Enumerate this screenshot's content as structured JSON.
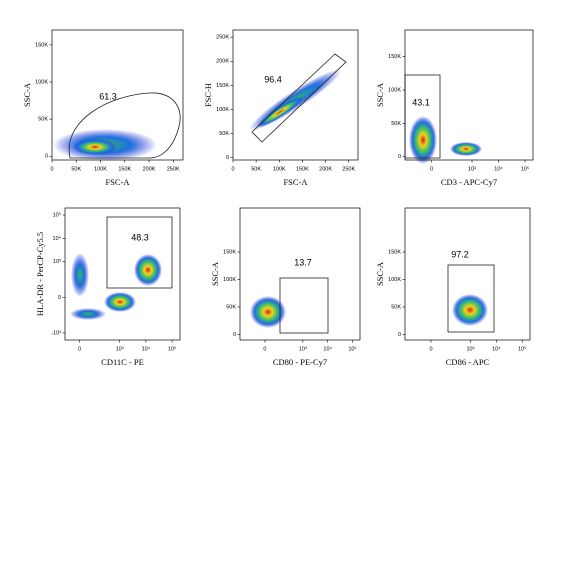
{
  "chart_data": [
    {
      "type": "scatter",
      "xlabel": "FSC-A",
      "ylabel": "SSC-A",
      "gate_percent": 61.3,
      "xscale": "linear",
      "yscale": "linear",
      "xlim": [
        0,
        270000
      ],
      "xticks": [
        0,
        {
          "value": 50000,
          "label": "50K"
        },
        {
          "value": 100000,
          "label": "100K"
        },
        {
          "value": 150000,
          "label": "150K"
        },
        {
          "value": 200000,
          "label": "200K"
        },
        {
          "value": 250000,
          "label": "250K"
        }
      ],
      "ylim": [
        -5000,
        170000
      ],
      "yticks": [
        0,
        {
          "value": 50000,
          "label": "50K"
        },
        {
          "value": 100000,
          "label": "100K"
        },
        {
          "value": 150000,
          "label": "150K"
        }
      ]
    },
    {
      "type": "scatter",
      "xlabel": "FSC-A",
      "ylabel": "FSC-H",
      "gate_percent": 96.4,
      "xscale": "linear",
      "yscale": "linear",
      "xlim": [
        0,
        270000
      ],
      "xticks": [
        0,
        {
          "value": 50000,
          "label": "50K"
        },
        {
          "value": 100000,
          "label": "100K"
        },
        {
          "value": 150000,
          "label": "150K"
        },
        {
          "value": 200000,
          "label": "200K"
        },
        {
          "value": 250000,
          "label": "250K"
        }
      ],
      "ylim": [
        -5000,
        265000
      ],
      "yticks": [
        0,
        {
          "value": 50000,
          "label": "50K"
        },
        {
          "value": 100000,
          "label": "100K"
        },
        {
          "value": 150000,
          "label": "150K"
        },
        {
          "value": 200000,
          "label": "200K"
        },
        {
          "value": 250000,
          "label": "250K"
        }
      ]
    },
    {
      "type": "scatter",
      "xlabel": "CD3 - APC-Cy7",
      "ylabel": "SSC-A",
      "gate_percent": 43.1,
      "xscale": "biex",
      "yscale": "linear",
      "xlim": [
        -300,
        200000
      ],
      "xticks": [
        0,
        {
          "value": 1000,
          "label": "10³"
        },
        {
          "value": 10000,
          "label": "10⁴"
        },
        {
          "value": 100000,
          "label": "10⁵"
        }
      ],
      "ylim": [
        -5000,
        190000
      ],
      "yticks": [
        0,
        {
          "value": 50000,
          "label": "50K"
        },
        {
          "value": 100000,
          "label": "100K"
        },
        {
          "value": 150000,
          "label": "150K"
        }
      ]
    },
    {
      "type": "scatter",
      "xlabel": "CD11C - PE",
      "ylabel": "HLA-DR - PerCP-Cy5.5",
      "gate_percent": 48.3,
      "xscale": "biex",
      "yscale": "biex",
      "xlim": [
        -100,
        200000
      ],
      "xticks": [
        0,
        {
          "value": 1000,
          "label": "10³"
        },
        {
          "value": 10000,
          "label": "10⁴"
        },
        {
          "value": 100000,
          "label": "10⁵"
        }
      ],
      "ylim": [
        -2000,
        200000
      ],
      "yticks": [
        {
          "value": -1000,
          "label": "-10³"
        },
        0,
        {
          "value": 1000,
          "label": "10³"
        },
        {
          "value": 10000,
          "label": "10⁴"
        },
        {
          "value": 100000,
          "label": "10⁵"
        }
      ]
    },
    {
      "type": "scatter",
      "xlabel": "CD80 - PE-Cy7",
      "ylabel": "SSC-A",
      "gate_percent": 13.7,
      "xscale": "biex",
      "yscale": "linear",
      "xlim": [
        -300,
        200000
      ],
      "xticks": [
        0,
        {
          "value": 1000,
          "label": "10³"
        },
        {
          "value": 10000,
          "label": "10⁴"
        },
        {
          "value": 100000,
          "label": "10⁵"
        }
      ],
      "ylim": [
        -10000,
        230000
      ],
      "yticks": [
        0,
        {
          "value": 50000,
          "label": "50K"
        },
        {
          "value": 100000,
          "label": "100K"
        },
        {
          "value": 150000,
          "label": "150K"
        }
      ]
    },
    {
      "type": "scatter",
      "xlabel": "CD86 - APC",
      "ylabel": "SSC-A",
      "gate_percent": 97.2,
      "xscale": "biex",
      "yscale": "linear",
      "xlim": [
        -300,
        200000
      ],
      "xticks": [
        0,
        {
          "value": 1000,
          "label": "10³"
        },
        {
          "value": 10000,
          "label": "10⁴"
        },
        {
          "value": 100000,
          "label": "10⁵"
        }
      ],
      "ylim": [
        -10000,
        230000
      ],
      "yticks": [
        0,
        {
          "value": 50000,
          "label": "50K"
        },
        {
          "value": 100000,
          "label": "100K"
        },
        {
          "value": 150000,
          "label": "150K"
        }
      ]
    }
  ]
}
